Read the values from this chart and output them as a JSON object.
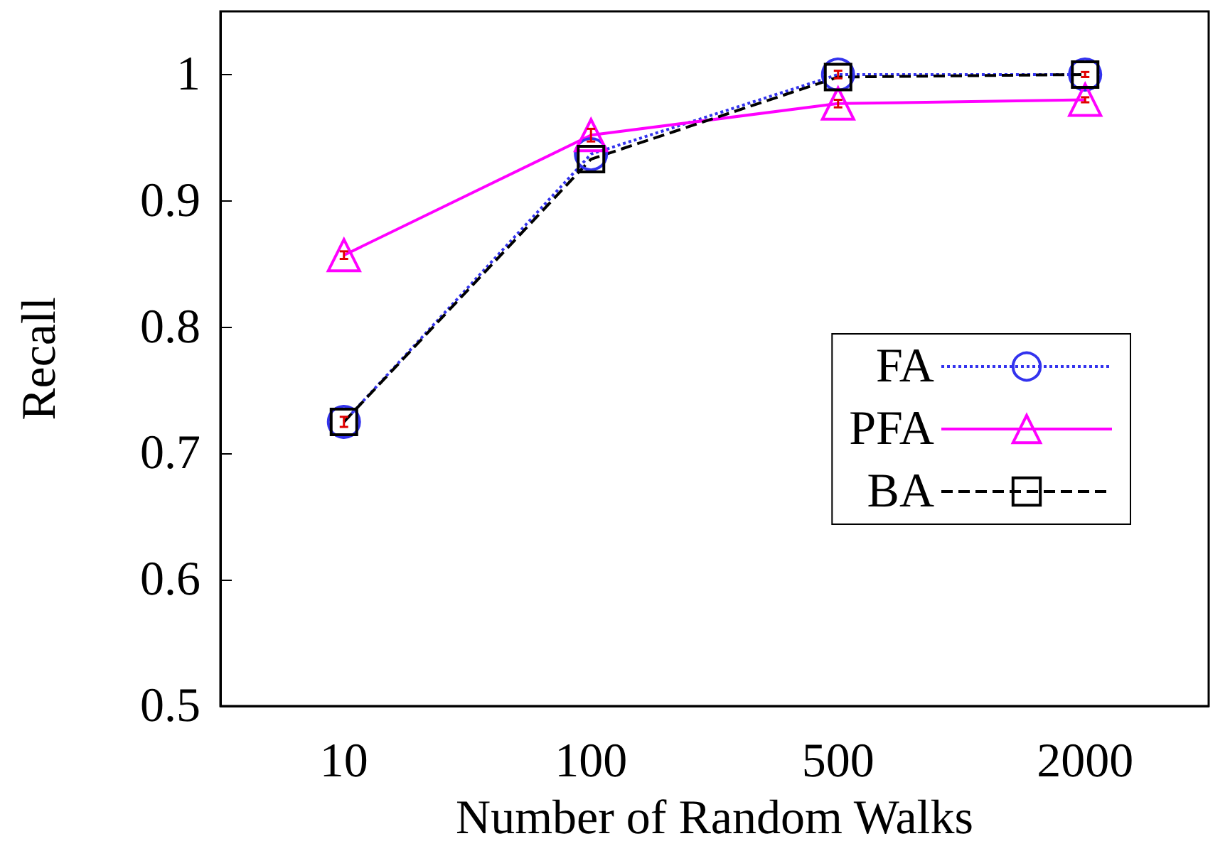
{
  "chart_data": {
    "type": "line",
    "xlabel": "Number of Random Walks",
    "ylabel": "Recall",
    "categories": [
      "10",
      "100",
      "500",
      "2000"
    ],
    "ylim": [
      0.5,
      1.05
    ],
    "yticks": [
      0.5,
      0.6,
      0.7,
      0.8,
      0.9,
      1
    ],
    "grid": false,
    "legend": "right",
    "series": [
      {
        "name": "FA",
        "color": "#3333ee",
        "marker": "circle",
        "line_style": "dotted",
        "values": [
          0.725,
          0.937,
          1.0,
          1.0
        ],
        "errors": [
          0.004,
          null,
          0.003,
          0.002
        ]
      },
      {
        "name": "PFA",
        "color": "#ff00ff",
        "marker": "triangle",
        "line_style": "solid",
        "values": [
          0.857,
          0.952,
          0.977,
          0.98
        ],
        "errors": [
          0.003,
          0.005,
          0.003,
          0.002
        ]
      },
      {
        "name": "BA",
        "color": "#000000",
        "marker": "square",
        "line_style": "dashed",
        "values": [
          0.725,
          0.933,
          0.998,
          1.0
        ]
      }
    ]
  }
}
